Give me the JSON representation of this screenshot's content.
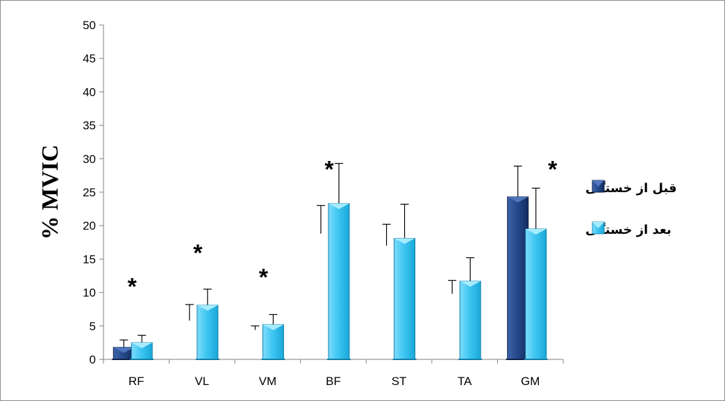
{
  "chart_data": {
    "type": "bar",
    "title": "",
    "xlabel": "",
    "ylabel": "% MVIC",
    "ylim": [
      0,
      50
    ],
    "yticks": [
      0,
      5,
      10,
      15,
      20,
      25,
      30,
      35,
      40,
      45,
      50
    ],
    "grid": false,
    "legend_position": "right",
    "categories": [
      "RF",
      "VL",
      "VM",
      "BF",
      "ST",
      "TA",
      "GM"
    ],
    "series": [
      {
        "name": "قبل از خستگی",
        "color": "#1f3f7a",
        "values": [
          1.8,
          0,
          0,
          0,
          0,
          0,
          24.3
        ],
        "error_top": [
          2.9,
          8.2,
          5.0,
          23.0,
          20.2,
          11.8,
          28.9
        ],
        "error_bottom": [
          1.8,
          5.8,
          4.4,
          18.8,
          17.0,
          9.8,
          24.3
        ]
      },
      {
        "name": "بعد از خستگی",
        "color": "#2ec0ef",
        "values": [
          2.5,
          8.1,
          5.2,
          23.3,
          18.1,
          11.7,
          19.5
        ],
        "error_top": [
          3.6,
          10.5,
          6.7,
          29.3,
          23.2,
          15.2,
          25.6
        ]
      }
    ],
    "annotations": [
      {
        "text": "*",
        "category": "RF",
        "y": 12.0
      },
      {
        "text": "*",
        "category": "VL",
        "y": 17.0
      },
      {
        "text": "*",
        "category": "VM",
        "y": 13.4
      },
      {
        "text": "*",
        "category": "BF",
        "y": 29.5
      },
      {
        "text": "*",
        "category": "GM",
        "y": 29.5
      }
    ]
  }
}
